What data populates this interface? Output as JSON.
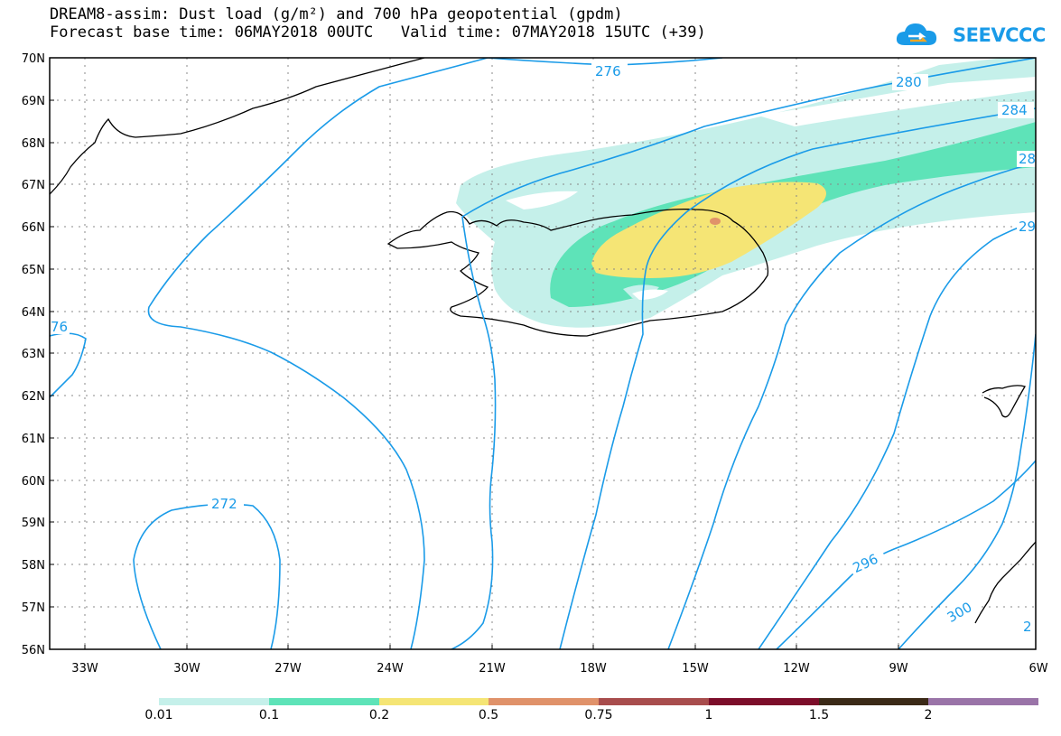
{
  "header": {
    "line1": "DREAM8-assim: Dust load (g/m²) and 700 hPa geopotential (gpdm)",
    "line2": "Forecast base time: 06MAY2018 00UTC   Valid time: 07MAY2018 15UTC (+39)"
  },
  "logo": {
    "text": "SEEVCCC",
    "color": "#1a9be8"
  },
  "axes": {
    "lat_labels": [
      "70N",
      "69N",
      "68N",
      "67N",
      "66N",
      "65N",
      "64N",
      "63N",
      "62N",
      "61N",
      "60N",
      "59N",
      "58N",
      "57N",
      "56N"
    ],
    "lon_labels": [
      "33W",
      "30W",
      "27W",
      "24W",
      "21W",
      "18W",
      "15W",
      "12W",
      "9W",
      "6W"
    ]
  },
  "contour_labels": [
    "276",
    "280",
    "284",
    "28",
    "29",
    "76",
    "272",
    "296",
    "300",
    "2"
  ],
  "legend": {
    "labels": [
      "0.01",
      "0.1",
      "0.2",
      "0.5",
      "0.75",
      "1",
      "1.5",
      "2"
    ],
    "colors": [
      "#c5f0ea",
      "#5ee3b8",
      "#f5e575",
      "#e0926a",
      "#a84d4d",
      "#7c0d2a",
      "#3b2a17",
      "#9a74a8"
    ]
  }
}
